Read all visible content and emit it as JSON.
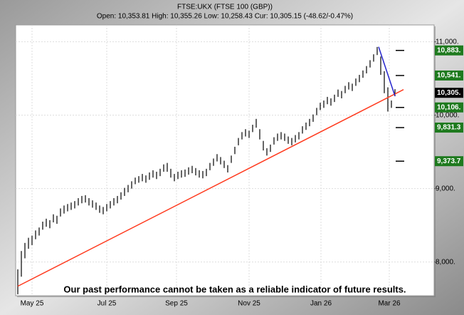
{
  "chart_data": {
    "type": "ohlc",
    "title": "FTSE:UKX (FTSE 100 (GBP))",
    "subtitle": "Open: 10,353.81 High: 10,355.26 Low: 10,258.43 Cur: 10,305.15 (-48.62/-0.47%)",
    "annotation": "Our past performance cannot be taken as a reliable indicator of future results.",
    "color": "#000000",
    "grid": true,
    "xlim": [
      -0.6,
      117
    ],
    "xticks": [
      {
        "value": 4,
        "label": "May 25"
      },
      {
        "value": 25,
        "label": "Jul 25"
      },
      {
        "value": 44.6,
        "label": "Sep 25"
      },
      {
        "value": 65,
        "label": "Nov 25"
      },
      {
        "value": 85.2,
        "label": "Jan 26"
      },
      {
        "value": 104.4,
        "label": "Mar 26"
      }
    ],
    "ylim": [
      7540,
      11230
    ],
    "yticks": [
      {
        "value": 8000,
        "label": "8,000."
      },
      {
        "value": 9000,
        "label": "9,000."
      },
      {
        "value": 10000,
        "label": "10,000."
      },
      {
        "value": 11000,
        "label": "11,000."
      }
    ],
    "high": [
      7900,
      8150,
      8260,
      8330,
      8360,
      8430,
      8470,
      8550,
      8590,
      8570,
      8650,
      8630,
      8730,
      8770,
      8790,
      8810,
      8830,
      8870,
      8900,
      8910,
      8870,
      8840,
      8810,
      8770,
      8750,
      8790,
      8830,
      8870,
      8900,
      8950,
      9010,
      9050,
      9100,
      9150,
      9170,
      9200,
      9180,
      9220,
      9250,
      9230,
      9270,
      9330,
      9350,
      9270,
      9200,
      9230,
      9250,
      9260,
      9290,
      9310,
      9280,
      9250,
      9240,
      9270,
      9350,
      9410,
      9470,
      9430,
      9380,
      9320,
      9450,
      9570,
      9690,
      9770,
      9810,
      9790,
      9870,
      9950,
      9810,
      9650,
      9550,
      9600,
      9700,
      9750,
      9770,
      9750,
      9710,
      9690,
      9730,
      9770,
      9850,
      9900,
      9950,
      10010,
      10100,
      10170,
      10200,
      10250,
      10230,
      10280,
      10350,
      10330,
      10400,
      10450,
      10430,
      10500,
      10550,
      10610,
      10670,
      10750,
      10830,
      10930,
      10800,
      10600,
      10380,
      10200,
      10355
    ],
    "low": [
      7560,
      7800,
      8050,
      8180,
      8230,
      8310,
      8360,
      8440,
      8480,
      8460,
      8540,
      8520,
      8620,
      8660,
      8690,
      8710,
      8730,
      8770,
      8800,
      8810,
      8770,
      8740,
      8710,
      8670,
      8650,
      8690,
      8730,
      8770,
      8800,
      8850,
      8900,
      8950,
      9000,
      9060,
      9080,
      9100,
      9080,
      9120,
      9150,
      9130,
      9170,
      9230,
      9230,
      9150,
      9100,
      9130,
      9150,
      9160,
      9190,
      9210,
      9180,
      9150,
      9140,
      9170,
      9250,
      9310,
      9370,
      9330,
      9280,
      9220,
      9350,
      9470,
      9590,
      9670,
      9710,
      9690,
      9770,
      9830,
      9670,
      9520,
      9450,
      9500,
      9600,
      9650,
      9670,
      9650,
      9610,
      9590,
      9630,
      9670,
      9750,
      9800,
      9850,
      9910,
      10000,
      10070,
      10100,
      10150,
      10130,
      10180,
      10250,
      10230,
      10300,
      10350,
      10330,
      10400,
      10450,
      10510,
      10570,
      10650,
      10730,
      10820,
      10550,
      10300,
      10050,
      10100,
      10258.43
    ],
    "trendlines": [
      {
        "color": "#ff3b1f",
        "x": [
          0,
          108.4
        ],
        "y": [
          7670,
          10349
        ]
      },
      {
        "color": "#2222cc",
        "x": [
          101.4,
          106
        ],
        "y": [
          10932,
          10262
        ]
      }
    ],
    "levels": [
      {
        "value": 10883,
        "label": "10,883.",
        "color": "#1e7a1e"
      },
      {
        "value": 10541,
        "label": "10,541.",
        "color": "#1e7a1e"
      },
      {
        "value": 10106,
        "label": "10,106.",
        "color": "#1e7a1e"
      },
      {
        "value": 9831.3,
        "label": "9,831.3",
        "color": "#1e7a1e"
      },
      {
        "value": 9373.7,
        "label": "9,373.7",
        "color": "#1e7a1e"
      }
    ],
    "current": {
      "value": 10305.15,
      "label": "10,305.",
      "color": "#000000"
    }
  }
}
